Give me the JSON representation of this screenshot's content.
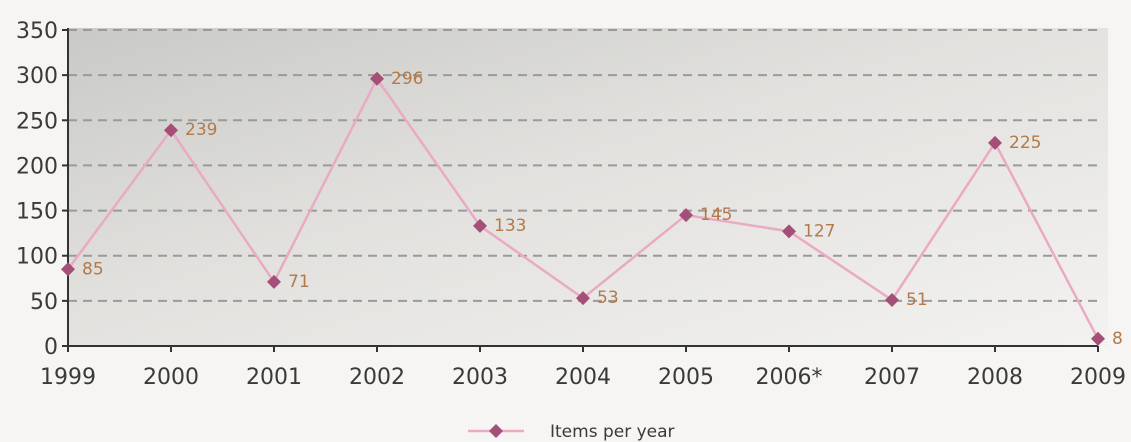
{
  "colors": {
    "line": "#ebaac4",
    "marker": "#a34f77",
    "data_label": "#b27a4a",
    "gridline": "#9a9a9a",
    "axis": "#333333"
  },
  "chart_data": {
    "type": "line",
    "title": "",
    "xlabel": "",
    "ylabel": "",
    "categories": [
      "1999",
      "2000",
      "2001",
      "2002",
      "2003",
      "2004",
      "2005",
      "2006*",
      "2007",
      "2008",
      "2009"
    ],
    "series": [
      {
        "name": "Items per year",
        "marker": "diamond",
        "values": [
          85,
          239,
          71,
          296,
          133,
          53,
          145,
          127,
          51,
          225,
          8
        ]
      }
    ],
    "data_labels": [
      "85",
      "239",
      "71",
      "296",
      "133",
      "53",
      "145",
      "127",
      "51",
      "225",
      "8"
    ],
    "y_ticks": [
      "0",
      "50",
      "100",
      "150",
      "200",
      "250",
      "300",
      "350"
    ],
    "ylim": [
      0,
      350
    ],
    "grid": true,
    "grid_style": "dashed",
    "legend": "bottom-center"
  }
}
